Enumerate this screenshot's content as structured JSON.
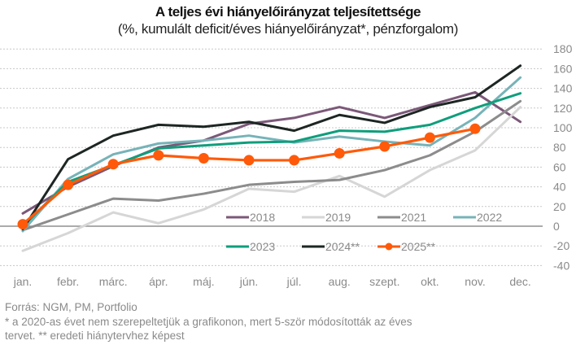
{
  "chart_data": {
    "type": "line",
    "title": "A teljes évi hiányelőirányzat teljesítettsége",
    "subtitle": "(%, kumulált deficit/éves hiányelőirányzat*, pénzforgalom)",
    "xlabel": "",
    "ylabel": "",
    "categories": [
      "jan.",
      "febr.",
      "márc.",
      "ápr.",
      "máj.",
      "jún.",
      "júl.",
      "aug.",
      "szept.",
      "okt.",
      "nov.",
      "dec."
    ],
    "yticks": [
      180,
      160,
      140,
      120,
      100,
      80,
      60,
      40,
      20,
      0,
      -20,
      -40
    ],
    "ylim": [
      -40,
      180
    ],
    "grid": true,
    "y_axis_position": "right",
    "legend_position": "inside-bottom-right",
    "series": [
      {
        "name": "2018",
        "color": "#7b5878",
        "marker": false,
        "values": [
          13,
          40,
          61,
          80,
          87,
          104,
          110,
          121,
          110,
          123,
          136,
          106
        ]
      },
      {
        "name": "2019",
        "color": "#d6d6d6",
        "marker": false,
        "values": [
          -25,
          -7,
          14,
          3,
          17,
          38,
          35,
          51,
          30,
          57,
          77,
          121
        ]
      },
      {
        "name": "2021",
        "color": "#8c8c8c",
        "marker": false,
        "values": [
          -4,
          12,
          28,
          26,
          33,
          42,
          45,
          47,
          57,
          72,
          96,
          127
        ]
      },
      {
        "name": "2022",
        "color": "#76b3b8",
        "marker": false,
        "values": [
          -5,
          48,
          73,
          84,
          87,
          92,
          85,
          91,
          86,
          82,
          110,
          151
        ]
      },
      {
        "name": "2023",
        "color": "#0f9e7c",
        "marker": false,
        "values": [
          0,
          45,
          62,
          79,
          82,
          85,
          86,
          97,
          96,
          103,
          120,
          135
        ]
      },
      {
        "name": "2024**",
        "color": "#1d2623",
        "marker": false,
        "values": [
          -3,
          68,
          92,
          103,
          101,
          106,
          97,
          113,
          105,
          121,
          131,
          163
        ]
      },
      {
        "name": "2025**",
        "color": "#ff5a0a",
        "marker": true,
        "values": [
          2,
          42,
          63,
          72,
          69,
          67,
          67,
          74,
          81,
          90,
          99,
          null
        ]
      }
    ]
  },
  "footer": {
    "source": "Forrás: NGM, PM, Portfolio",
    "note_line1": "* a 2020-as évet nem szerepeltetjük a grafikonon, mert 5-ször módosították az éves",
    "note_line2": "tervet. ** eredeti hiánytervhez képest"
  }
}
